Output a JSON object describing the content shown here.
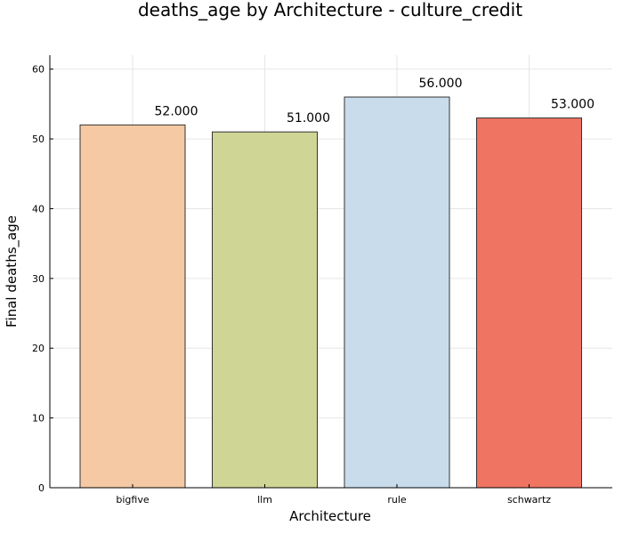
{
  "chart_data": {
    "type": "bar",
    "title": "deaths_age by Architecture - culture_credit",
    "xlabel": "Architecture",
    "ylabel": "Final deaths_age",
    "categories": [
      "bigfive",
      "llm",
      "rule",
      "schwartz"
    ],
    "values": [
      52,
      51,
      56,
      53
    ],
    "value_labels": [
      "52.000",
      "51.000",
      "56.000",
      "53.000"
    ],
    "colors": [
      "#f5c9a3",
      "#cfd594",
      "#c8dcec",
      "#ef7462"
    ],
    "ylim": [
      0,
      62
    ],
    "yticks": [
      0,
      10,
      20,
      30,
      40,
      50,
      60
    ],
    "grid": true,
    "legend": "none"
  }
}
